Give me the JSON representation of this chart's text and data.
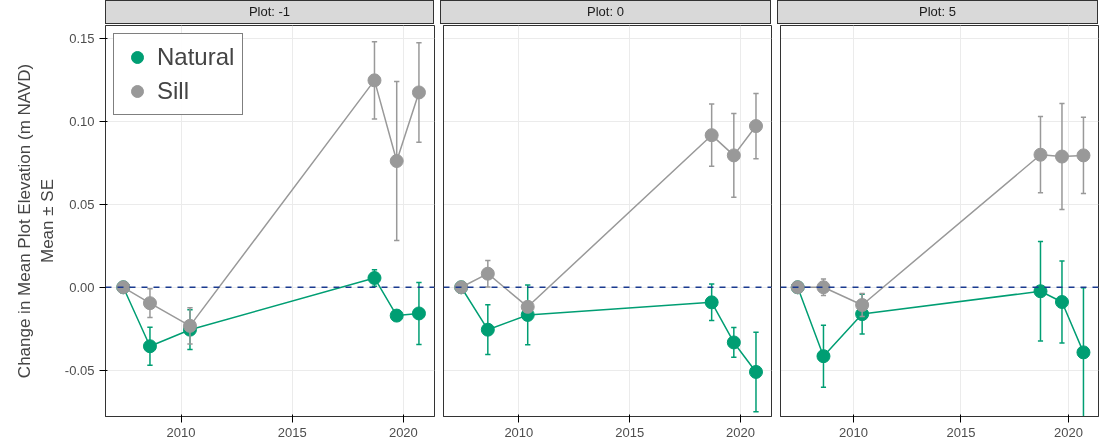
{
  "chart_data": [
    {
      "type": "line",
      "title": "Plot: -1",
      "ylabel": "Change in Mean Plot Elevation (m NAVD)\nMean ± SE",
      "x": [
        2007.4,
        2008.6,
        2010.4,
        2018.7,
        2019.7,
        2020.7
      ],
      "xlim": [
        2006.6,
        2021.4
      ],
      "xticks": [
        2010,
        2015,
        2020
      ],
      "ylim": [
        -0.078,
        0.158
      ],
      "yticks": [
        {
          "value": -0.05,
          "label": "-0.05"
        },
        {
          "value": 0,
          "label": "0.00"
        },
        {
          "value": 0.05,
          "label": "0.05"
        },
        {
          "value": 0.1,
          "label": "0.10"
        },
        {
          "value": 0.15,
          "label": "0.15"
        }
      ],
      "grid": true,
      "legend": "top left",
      "marker": "circle",
      "line_style": "solid",
      "series": [
        {
          "name": "Natural",
          "color": "#009e73",
          "values": [
            0,
            -0.0356,
            -0.0256,
            0.0056,
            -0.0171,
            -0.0158
          ],
          "errors": [
            null,
            0.0115,
            0.012,
            0.005,
            null,
            0.0187
          ]
        },
        {
          "name": "Sill",
          "color": "#999999",
          "values": [
            0,
            -0.0096,
            -0.0233,
            0.1249,
            0.0762,
            0.1176
          ],
          "errors": [
            null,
            0.0087,
            0.011,
            0.0233,
            0.048,
            0.03
          ]
        }
      ],
      "ref_lines": [
        {
          "axis": "y",
          "value": 0,
          "color": "#1a3a8f",
          "line_style": "dashed"
        }
      ]
    },
    {
      "type": "line",
      "title": "Plot: 0",
      "x": [
        2007.4,
        2008.6,
        2010.4,
        2018.7,
        2019.7,
        2020.7
      ],
      "xlim": [
        2006.6,
        2021.4
      ],
      "xticks": [
        2010,
        2015,
        2020
      ],
      "ylim": [
        -0.078,
        0.158
      ],
      "yticks": [
        -0.05,
        0,
        0.05,
        0.1,
        0.15
      ],
      "tick_labels": "x",
      "grid": true,
      "marker": "circle",
      "line_style": "solid",
      "series": [
        {
          "color": "#009e73",
          "values": [
            0,
            -0.0256,
            -0.0167,
            -0.0091,
            -0.0333,
            -0.0511
          ],
          "errors": [
            null,
            0.015,
            0.018,
            0.011,
            0.009,
            0.024
          ]
        },
        {
          "color": "#999999",
          "values": [
            0,
            0.0082,
            -0.0118,
            0.0918,
            0.0796,
            0.0973
          ],
          "errors": [
            null,
            0.008,
            null,
            0.0188,
            0.0253,
            0.0197
          ]
        }
      ],
      "ref_lines": [
        {
          "axis": "y",
          "value": 0,
          "color": "#1a3a8f",
          "line_style": "dashed"
        }
      ]
    },
    {
      "type": "line",
      "title": "Plot: 5",
      "x": [
        2007.4,
        2008.6,
        2010.4,
        2018.7,
        2019.7,
        2020.7
      ],
      "xlim": [
        2006.6,
        2021.4
      ],
      "xticks": [
        2010,
        2015,
        2020
      ],
      "ylim": [
        -0.078,
        0.158
      ],
      "yticks": [
        -0.05,
        0,
        0.05,
        0.1,
        0.15
      ],
      "tick_labels": "x",
      "grid": true,
      "marker": "circle",
      "line_style": "solid",
      "series": [
        {
          "color": "#009e73",
          "values": [
            0,
            -0.0416,
            -0.0162,
            -0.0024,
            -0.0089,
            -0.0393
          ],
          "errors": [
            null,
            0.0187,
            0.012,
            0.03,
            0.0248,
            0.039
          ]
        },
        {
          "color": "#999999",
          "values": [
            0,
            0,
            -0.0107,
            0.08,
            0.0789,
            0.0796
          ],
          "errors": [
            null,
            0.005,
            0.007,
            0.023,
            0.032,
            0.023
          ]
        }
      ],
      "ref_lines": [
        {
          "axis": "y",
          "value": 0,
          "color": "#1a3a8f",
          "line_style": "dashed"
        }
      ]
    }
  ]
}
